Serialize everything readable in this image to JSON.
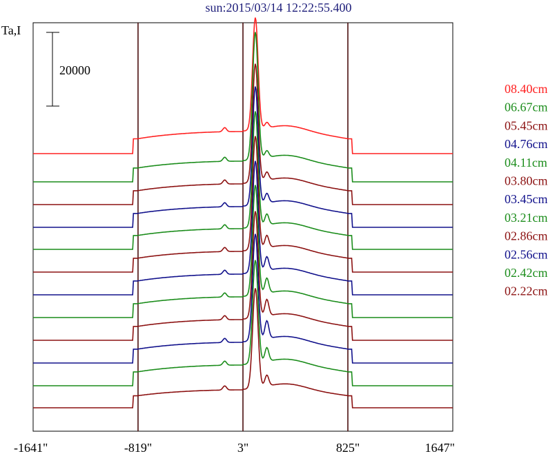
{
  "chart_data": {
    "type": "line",
    "title": "sun:2015/03/14 12:22:55.400",
    "ylabel": "Ta,I",
    "scale_bar_label": "20000",
    "x_ticks": [
      "-1641\"",
      "-819\"",
      "3\"",
      "825\"",
      "1647\""
    ],
    "x_values": [
      -1641,
      -819,
      3,
      825,
      1647
    ],
    "xlim": [
      -1641,
      1647
    ],
    "vertical_lines_at": [
      -819,
      3,
      825
    ],
    "series": [
      {
        "name": "08.40cm",
        "color": "#ff2020",
        "baseline": 223,
        "peak": 163,
        "secondary": 8,
        "plateau": 32
      },
      {
        "name": "06.67cm",
        "color": "#1a8c1a",
        "baseline": 264,
        "peak": 185,
        "secondary": 10,
        "plateau": 30
      },
      {
        "name": "05.45cm",
        "color": "#8b1010",
        "baseline": 297,
        "peak": 172,
        "secondary": 12,
        "plateau": 30
      },
      {
        "name": "04.76cm",
        "color": "#10108b",
        "baseline": 330,
        "peak": 172,
        "secondary": 14,
        "plateau": 30
      },
      {
        "name": "04.11cm",
        "color": "#1a8c1a",
        "baseline": 362,
        "peak": 168,
        "secondary": 16,
        "plateau": 30
      },
      {
        "name": "03.80cm",
        "color": "#8b1010",
        "baseline": 395,
        "peak": 165,
        "secondary": 18,
        "plateau": 30
      },
      {
        "name": "03.45cm",
        "color": "#10108b",
        "baseline": 428,
        "peak": 162,
        "secondary": 20,
        "plateau": 30
      },
      {
        "name": "03.21cm",
        "color": "#1a8c1a",
        "baseline": 461,
        "peak": 160,
        "secondary": 22,
        "plateau": 30
      },
      {
        "name": "02.86cm",
        "color": "#8b1010",
        "baseline": 494,
        "peak": 155,
        "secondary": 24,
        "plateau": 30
      },
      {
        "name": "02.56cm",
        "color": "#10108b",
        "baseline": 527,
        "peak": 155,
        "secondary": 26,
        "plateau": 30
      },
      {
        "name": "02.42cm",
        "color": "#1a8c1a",
        "baseline": 560,
        "peak": 150,
        "secondary": 20,
        "plateau": 30
      },
      {
        "name": "02.22cm",
        "color": "#8b1010",
        "baseline": 592,
        "peak": 145,
        "secondary": 16,
        "plateau": 26
      }
    ]
  }
}
